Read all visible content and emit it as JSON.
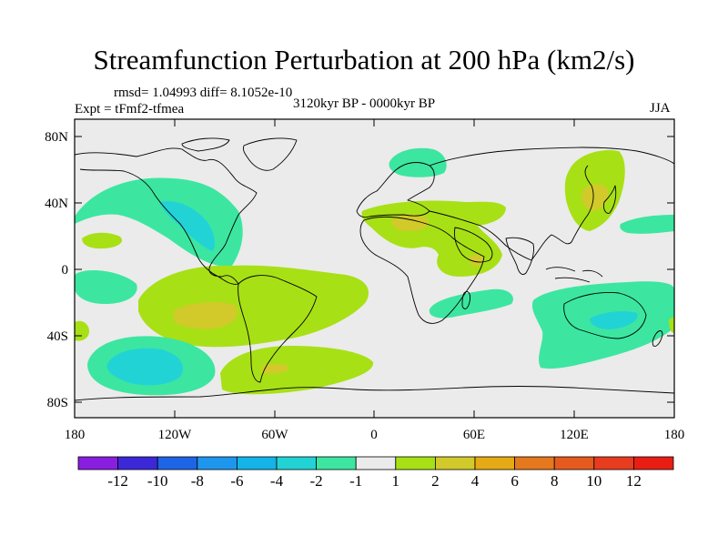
{
  "title": "Streamfunction Perturbation at 200 hPa (km2/s)",
  "stats": "rmsd= 1.04993 diff= 8.1052e-10",
  "experiment": "Expt = tFmf2-tfmea",
  "period": "3120kyr BP - 0000kyr BP",
  "season": "JJA",
  "colors": {
    "land_bg": "#ebebeb",
    "green_pos1": "#a8e016",
    "yellow_pos2": "#d2ca2a",
    "teal_neg1": "#3ce6a0",
    "cyan_neg2": "#22d3d6",
    "coast": "#000000"
  },
  "map": {
    "projection": "cylindrical-equidistant",
    "lon_range": [
      -180,
      180
    ],
    "lat_range": [
      -90,
      90
    ],
    "lon_ticks": [
      "180",
      "120W",
      "60W",
      "0",
      "60E",
      "120E",
      "180"
    ],
    "lat_ticks": [
      "80N",
      "40N",
      "0",
      "40S",
      "80S"
    ],
    "lat_tick_values": [
      80,
      40,
      0,
      -40,
      -80
    ],
    "lon_tick_values": [
      -180,
      -120,
      -60,
      0,
      60,
      120,
      180
    ]
  },
  "colorbar": {
    "labels": [
      "-12",
      "-10",
      "-8",
      "-6",
      "-4",
      "-2",
      "-1",
      "1",
      "2",
      "4",
      "6",
      "8",
      "10",
      "12"
    ],
    "colors": [
      "#8a1ee0",
      "#3c28d8",
      "#1e64e6",
      "#1e96ee",
      "#14b4e8",
      "#22d3d6",
      "#3ce6a0",
      "#ebebeb",
      "#a8e016",
      "#d2ca2a",
      "#e6aa14",
      "#e6781e",
      "#e65a1e",
      "#e83c1e",
      "#e81e14"
    ]
  }
}
